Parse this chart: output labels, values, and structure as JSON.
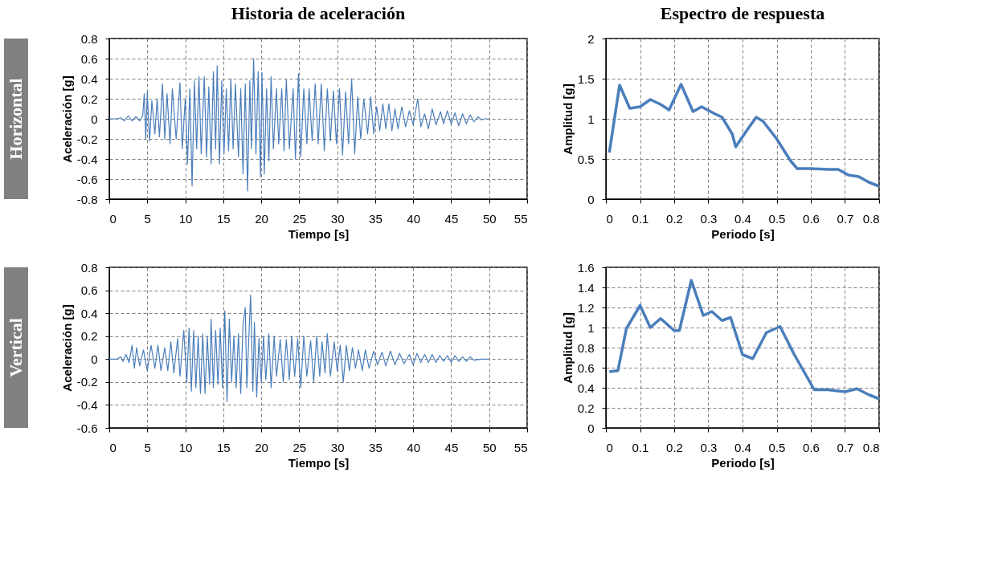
{
  "chart_data": [
    {
      "type": "line",
      "title": "Historia de aceleración",
      "annotations": [
        "Horizontal"
      ],
      "xlabel": "Tiempo [s]",
      "ylabel": "Aceleración [g]",
      "xlim": [
        0,
        55
      ],
      "xticks": [
        0,
        5,
        10,
        15,
        20,
        25,
        30,
        35,
        40,
        45,
        50,
        55
      ],
      "ylim": [
        -0.8,
        0.8
      ],
      "yticks": [
        -0.8,
        -0.6,
        -0.4,
        -0.2,
        0,
        0.2,
        0.4,
        0.6,
        0.8
      ],
      "grid": true,
      "line_style": "solid",
      "series": [
        {
          "color": "#4a7ebb",
          "x": [
            0,
            1,
            1.5,
            2,
            2.5,
            3,
            3.5,
            4,
            4.4,
            4.6,
            4.8,
            5,
            5.3,
            5.6,
            6,
            6.3,
            6.6,
            7,
            7.3,
            7.6,
            8,
            8.3,
            8.8,
            9.3,
            9.6,
            10,
            10.3,
            10.6,
            10.9,
            11.2,
            11.5,
            11.8,
            12.1,
            12.5,
            12.8,
            13.1,
            13.4,
            13.7,
            14,
            14.2,
            14.5,
            14.8,
            15.1,
            15.4,
            15.7,
            16,
            16.3,
            16.6,
            17,
            17.3,
            17.6,
            17.9,
            18.2,
            18.5,
            18.7,
            19,
            19.3,
            19.6,
            19.9,
            20.1,
            20.4,
            20.7,
            21,
            21.3,
            21.6,
            22,
            22.3,
            22.7,
            23,
            23.3,
            23.7,
            24.2,
            24.5,
            24.9,
            25.2,
            25.6,
            26,
            26.3,
            26.7,
            27.1,
            27.5,
            27.9,
            28.3,
            28.7,
            29.1,
            29.5,
            29.9,
            30.3,
            30.7,
            31.1,
            31.5,
            31.9,
            32.3,
            32.7,
            33.1,
            33.5,
            34,
            34.4,
            34.8,
            35.2,
            35.6,
            36,
            36.4,
            36.8,
            37.2,
            37.6,
            38,
            38.5,
            39,
            39.5,
            40,
            40.6,
            41,
            41.5,
            42,
            42.5,
            43,
            43.6,
            44,
            44.5,
            45,
            45.5,
            46,
            46.5,
            47,
            47.5,
            48,
            48.5,
            49,
            49.5,
            50
          ],
          "values": [
            0,
            0,
            0.01,
            -0.02,
            0.03,
            -0.02,
            0.02,
            -0.02,
            0.03,
            0.25,
            -0.2,
            0.27,
            -0.22,
            0.18,
            -0.15,
            0.2,
            -0.18,
            0.35,
            -0.2,
            0.25,
            -0.25,
            0.3,
            -0.2,
            0.36,
            -0.3,
            0.2,
            -0.45,
            0.3,
            -0.67,
            0.38,
            -0.3,
            0.42,
            -0.35,
            0.42,
            -0.38,
            0.32,
            -0.45,
            0.47,
            -0.3,
            0.53,
            -0.45,
            0.38,
            -0.35,
            0.3,
            -0.32,
            0.4,
            -0.3,
            0.35,
            -0.38,
            0.3,
            -0.55,
            0.35,
            -0.72,
            0.38,
            -0.3,
            0.6,
            -0.35,
            0.47,
            -0.58,
            0.46,
            -0.55,
            0.3,
            -0.42,
            0.42,
            -0.3,
            0.3,
            -0.25,
            0.3,
            -0.32,
            0.39,
            -0.3,
            0.3,
            -0.4,
            0.45,
            -0.38,
            0.3,
            -0.25,
            0.3,
            -0.22,
            0.35,
            -0.25,
            0.35,
            -0.32,
            0.3,
            -0.22,
            0.28,
            -0.25,
            0.3,
            -0.36,
            0.27,
            -0.25,
            0.4,
            -0.35,
            0.22,
            -0.2,
            0.2,
            -0.15,
            0.22,
            -0.15,
            0.12,
            -0.12,
            0.15,
            -0.1,
            0.15,
            -0.12,
            0.1,
            -0.1,
            0.12,
            -0.08,
            0.08,
            -0.06,
            0.2,
            -0.08,
            0.05,
            -0.1,
            0.1,
            -0.06,
            0.07,
            -0.05,
            0.08,
            -0.05,
            0.06,
            -0.07,
            0.05,
            -0.05,
            0.04,
            -0.03,
            0.02,
            -0.01,
            0,
            0
          ]
        }
      ]
    },
    {
      "type": "line",
      "title": "Espectro de respuesta",
      "xlabel": "Periodo [s]",
      "ylabel": "Amplitud [g]",
      "xlim": [
        0,
        0.8
      ],
      "xticks": [
        0,
        0.1,
        0.2,
        0.3,
        0.4,
        0.5,
        0.6,
        0.7,
        0.8
      ],
      "ylim": [
        0,
        2
      ],
      "yticks": [
        0,
        0.5,
        1,
        1.5,
        2
      ],
      "grid": true,
      "line_style": "solid",
      "series": [
        {
          "color": "#4a7ebb",
          "x": [
            0.01,
            0.04,
            0.07,
            0.1,
            0.13,
            0.16,
            0.185,
            0.22,
            0.255,
            0.28,
            0.32,
            0.34,
            0.37,
            0.38,
            0.41,
            0.44,
            0.46,
            0.5,
            0.54,
            0.56,
            0.6,
            0.65,
            0.68,
            0.71,
            0.74,
            0.77,
            0.8
          ],
          "values": [
            0.58,
            1.42,
            1.13,
            1.15,
            1.24,
            1.18,
            1.11,
            1.43,
            1.09,
            1.15,
            1.06,
            1.02,
            0.81,
            0.65,
            0.84,
            1.02,
            0.97,
            0.75,
            0.48,
            0.38,
            0.38,
            0.37,
            0.37,
            0.3,
            0.28,
            0.21,
            0.16
          ]
        }
      ]
    },
    {
      "type": "line",
      "annotations": [
        "Vertical"
      ],
      "xlabel": "Tiempo [s]",
      "ylabel": "Aceleración [g]",
      "xlim": [
        0,
        55
      ],
      "xticks": [
        0,
        5,
        10,
        15,
        20,
        25,
        30,
        35,
        40,
        45,
        50,
        55
      ],
      "ylim": [
        -0.6,
        0.8
      ],
      "yticks": [
        -0.6,
        -0.4,
        -0.2,
        0,
        0.2,
        0.4,
        0.6,
        0.8
      ],
      "grid": true,
      "line_style": "solid",
      "series": [
        {
          "color": "#4a7ebb",
          "x": [
            0,
            1,
            1.5,
            1.8,
            2.2,
            2.6,
            3,
            3.3,
            3.6,
            4,
            4.5,
            5,
            5.5,
            6,
            6.4,
            6.8,
            7.3,
            7.7,
            8.1,
            8.5,
            9,
            9.3,
            9.8,
            10.2,
            10.5,
            10.8,
            11.1,
            11.4,
            11.7,
            12,
            12.3,
            12.6,
            12.9,
            13.2,
            13.4,
            13.7,
            14,
            14.3,
            14.6,
            14.9,
            15.2,
            15.5,
            15.8,
            16.1,
            16.4,
            16.7,
            17,
            17.3,
            17.6,
            17.9,
            18.1,
            18.6,
            18.9,
            19.1,
            19.4,
            19.7,
            20,
            20.3,
            20.6,
            21,
            21.3,
            21.7,
            22,
            22.5,
            22.9,
            23.3,
            23.7,
            24,
            24.4,
            24.8,
            25.2,
            25.6,
            26,
            26.5,
            26.9,
            27.3,
            27.7,
            28,
            28.4,
            28.7,
            29.1,
            29.6,
            30,
            30.4,
            30.8,
            31.2,
            31.6,
            32,
            32.4,
            32.8,
            33.3,
            33.7,
            34.2,
            34.8,
            35.3,
            35.9,
            36.4,
            37,
            37.6,
            38.2,
            38.8,
            39.5,
            40,
            40.5,
            41,
            41.5,
            42,
            42.5,
            43,
            43.5,
            44,
            44.5,
            45,
            45.5,
            46,
            46.5,
            47,
            47.5,
            48,
            49,
            50
          ],
          "values": [
            0,
            0,
            0.02,
            -0.02,
            0.04,
            -0.03,
            0.12,
            -0.08,
            0.1,
            -0.06,
            0.08,
            -0.1,
            0.12,
            -0.08,
            0.12,
            -0.1,
            0.1,
            -0.1,
            0.15,
            -0.12,
            0.18,
            -0.15,
            0.25,
            -0.2,
            0.27,
            -0.28,
            0.25,
            -0.25,
            0.2,
            -0.3,
            0.22,
            -0.3,
            0.2,
            -0.22,
            0.35,
            -0.25,
            0.25,
            -0.22,
            0.27,
            -0.25,
            0.42,
            -0.37,
            0.35,
            -0.2,
            0.2,
            -0.25,
            0.22,
            -0.3,
            0.3,
            0.45,
            -0.25,
            0.56,
            -0.28,
            0.32,
            -0.33,
            0.18,
            -0.2,
            0.2,
            -0.18,
            0.22,
            -0.25,
            0.2,
            -0.15,
            0.17,
            -0.2,
            0.17,
            -0.18,
            0.2,
            -0.15,
            0.18,
            -0.25,
            0.2,
            -0.15,
            0.16,
            -0.2,
            0.2,
            -0.15,
            0.15,
            -0.12,
            0.22,
            -0.15,
            0.15,
            -0.1,
            0.12,
            -0.2,
            0.12,
            -0.1,
            0.1,
            -0.08,
            0.08,
            -0.1,
            0.08,
            -0.08,
            0.07,
            -0.05,
            0.06,
            -0.06,
            0.07,
            -0.05,
            0.05,
            -0.04,
            0.04,
            -0.05,
            0.05,
            -0.03,
            0.04,
            -0.03,
            0.04,
            -0.03,
            0.03,
            -0.02,
            0.03,
            -0.03,
            0.03,
            -0.02,
            0.02,
            -0.02,
            0.02,
            -0.01,
            0,
            0
          ]
        }
      ]
    },
    {
      "type": "line",
      "xlabel": "Periodo [s]",
      "ylabel": "Amplitud [g]",
      "xlim": [
        0,
        0.8
      ],
      "xticks": [
        0,
        0.1,
        0.2,
        0.3,
        0.4,
        0.5,
        0.6,
        0.7,
        0.8
      ],
      "ylim": [
        0,
        1.6
      ],
      "yticks": [
        0,
        0.2,
        0.4,
        0.6,
        0.8,
        1,
        1.2,
        1.4,
        1.6
      ],
      "grid": true,
      "line_style": "solid",
      "series": [
        {
          "color": "#4a7ebb",
          "x": [
            0.01,
            0.035,
            0.06,
            0.1,
            0.13,
            0.16,
            0.2,
            0.215,
            0.25,
            0.285,
            0.31,
            0.34,
            0.365,
            0.4,
            0.43,
            0.47,
            0.51,
            0.55,
            0.61,
            0.65,
            0.7,
            0.735,
            0.77,
            0.8
          ],
          "values": [
            0.56,
            0.57,
            0.99,
            1.22,
            1.0,
            1.09,
            0.97,
            0.97,
            1.47,
            1.12,
            1.16,
            1.07,
            1.1,
            0.73,
            0.69,
            0.95,
            1.01,
            0.74,
            0.38,
            0.38,
            0.36,
            0.39,
            0.33,
            0.29
          ]
        }
      ]
    }
  ]
}
